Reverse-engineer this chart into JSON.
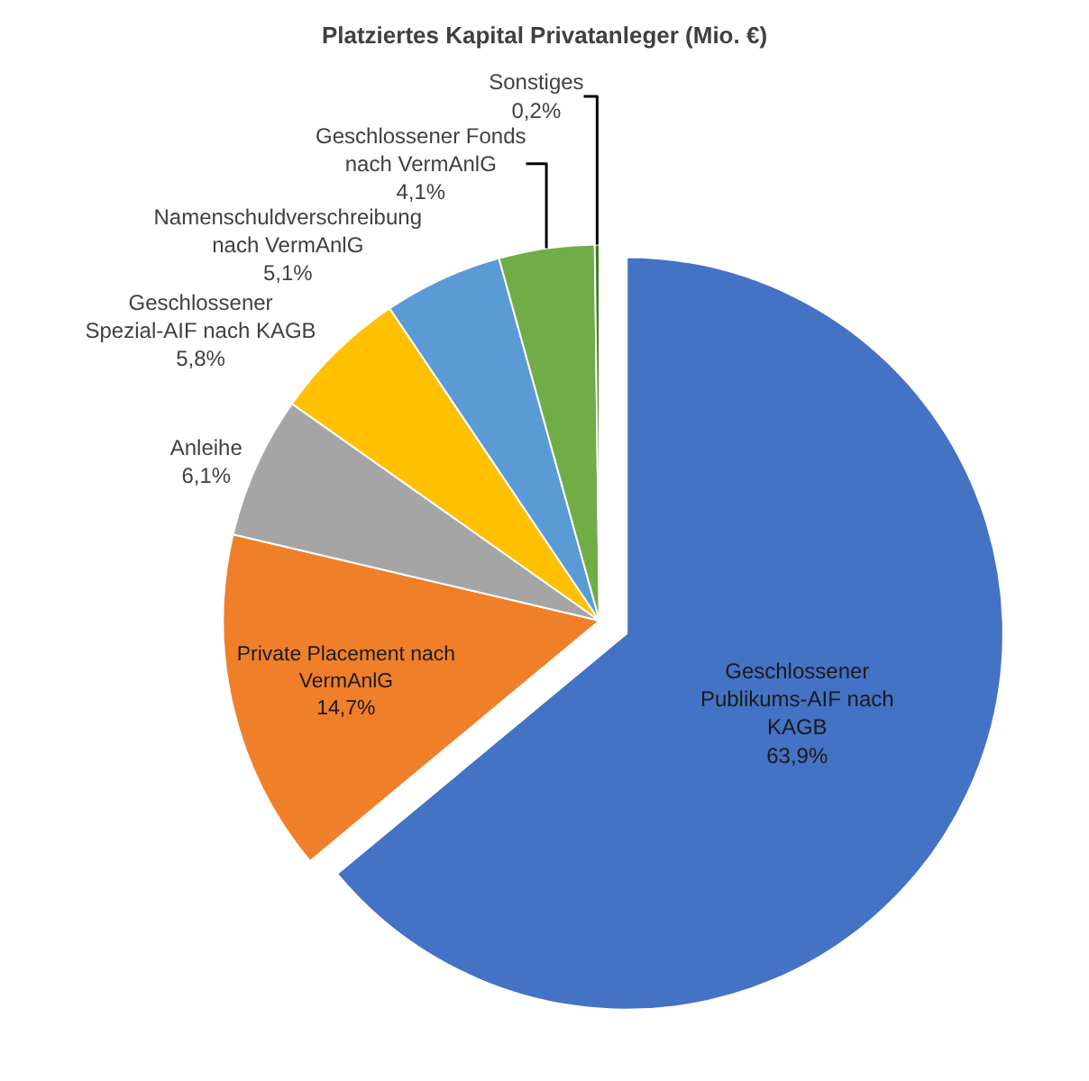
{
  "chart_data": {
    "type": "pie",
    "title": "Platziertes Kapital Privatanleger (Mio. €)",
    "categories": [
      "Geschlossener Publikums-AIF nach KAGB",
      "Private Placement nach VermAnlG",
      "Anleihe",
      "Geschlossener Spezial-AIF nach KAGB",
      "Namenschuldverschreibung nach VermAnlG",
      "Geschlossener Fonds nach VermAnlG",
      "Sonstiges"
    ],
    "values": [
      63.9,
      14.7,
      6.1,
      5.8,
      5.1,
      4.1,
      0.2
    ],
    "value_labels": [
      "63,9%",
      "14,7%",
      "6,1%",
      "5,8%",
      "5,1%",
      "4,1%",
      "0,2%"
    ],
    "colors": [
      "#4472c4",
      "#f07f2a",
      "#a5a5a5",
      "#ffc000",
      "#5b9bd5",
      "#70ad47",
      "#3c7d22"
    ],
    "legend": false
  }
}
